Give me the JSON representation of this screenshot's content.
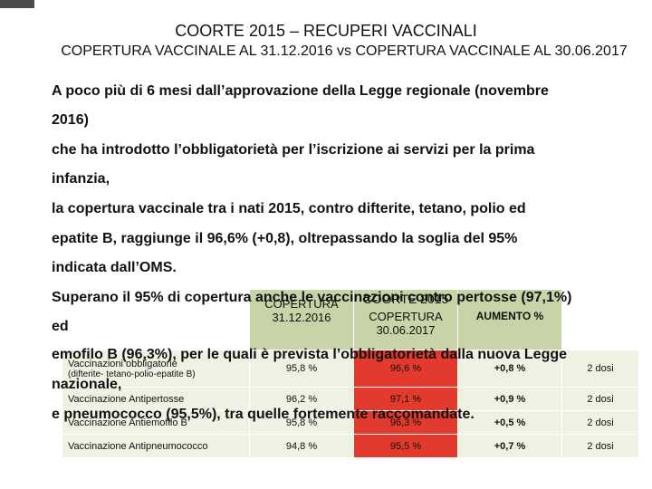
{
  "title": "COORTE 2015 – RECUPERI VACCINALI",
  "subtitle": "COPERTURA VACCINALE AL 31.12.2016 vs COPERTURA VACCINALE AL 30.06.2017",
  "paragraphs": [
    "A poco più di 6 mesi dall’approvazione della Legge regionale (novembre",
    "2016)",
    "che ha introdotto l’obbligatorietà per l’iscrizione ai servizi per la prima",
    "infanzia,",
    "la copertura vaccinale tra i nati 2015, contro difterite, tetano, polio ed",
    "epatite B, raggiunge il 96,6% (+0,8), oltrepassando la soglia del 95%",
    "indicata dall’OMS.",
    "Superano il 95% di copertura anche le vaccinazioni contro pertosse (97,1%)",
    "ed",
    "emofilo B (96,3%), per le quali è prevista l’obbligatorietà dalla nuova Legge",
    "nazionale,",
    "e pneumococco (95,5%), tra quelle fortemente raccomandate."
  ],
  "table": {
    "title": "COORTE 2015",
    "headers": {
      "col1": "COPERTURA 31.12.2016",
      "col2": "COPERTURA 30.06.2017",
      "col3": "AUMENTO %"
    },
    "rows": [
      {
        "name": "Vaccinazioni obbligatorie",
        "sub": "(difterite- tetano-polio-epatite B)",
        "c1": "95,8 %",
        "c2": "96,6 %",
        "c3": "+0,8 %",
        "c4": "2 dosi"
      },
      {
        "name": "Vaccinazione Antipertosse",
        "sub": "",
        "c1": "96,2 %",
        "c2": "97,1 %",
        "c3": "+0,9 %",
        "c4": "2 dosi"
      },
      {
        "name": "Vaccinazione Antiemofilo B",
        "sub": "",
        "c1": "95,8 %",
        "c2": "96,3 %",
        "c3": "+0,5 %",
        "c4": "2 dosi"
      },
      {
        "name": "Vaccinazione Antipneumococco",
        "sub": "",
        "c1": "94,8 %",
        "c2": "95,5 %",
        "c3": "+0,7 %",
        "c4": "2 dosi"
      }
    ]
  },
  "colors": {
    "header_green": "#c8d4a8",
    "row_bg": "#eef2e2",
    "highlight_red": "#e23a2c"
  }
}
